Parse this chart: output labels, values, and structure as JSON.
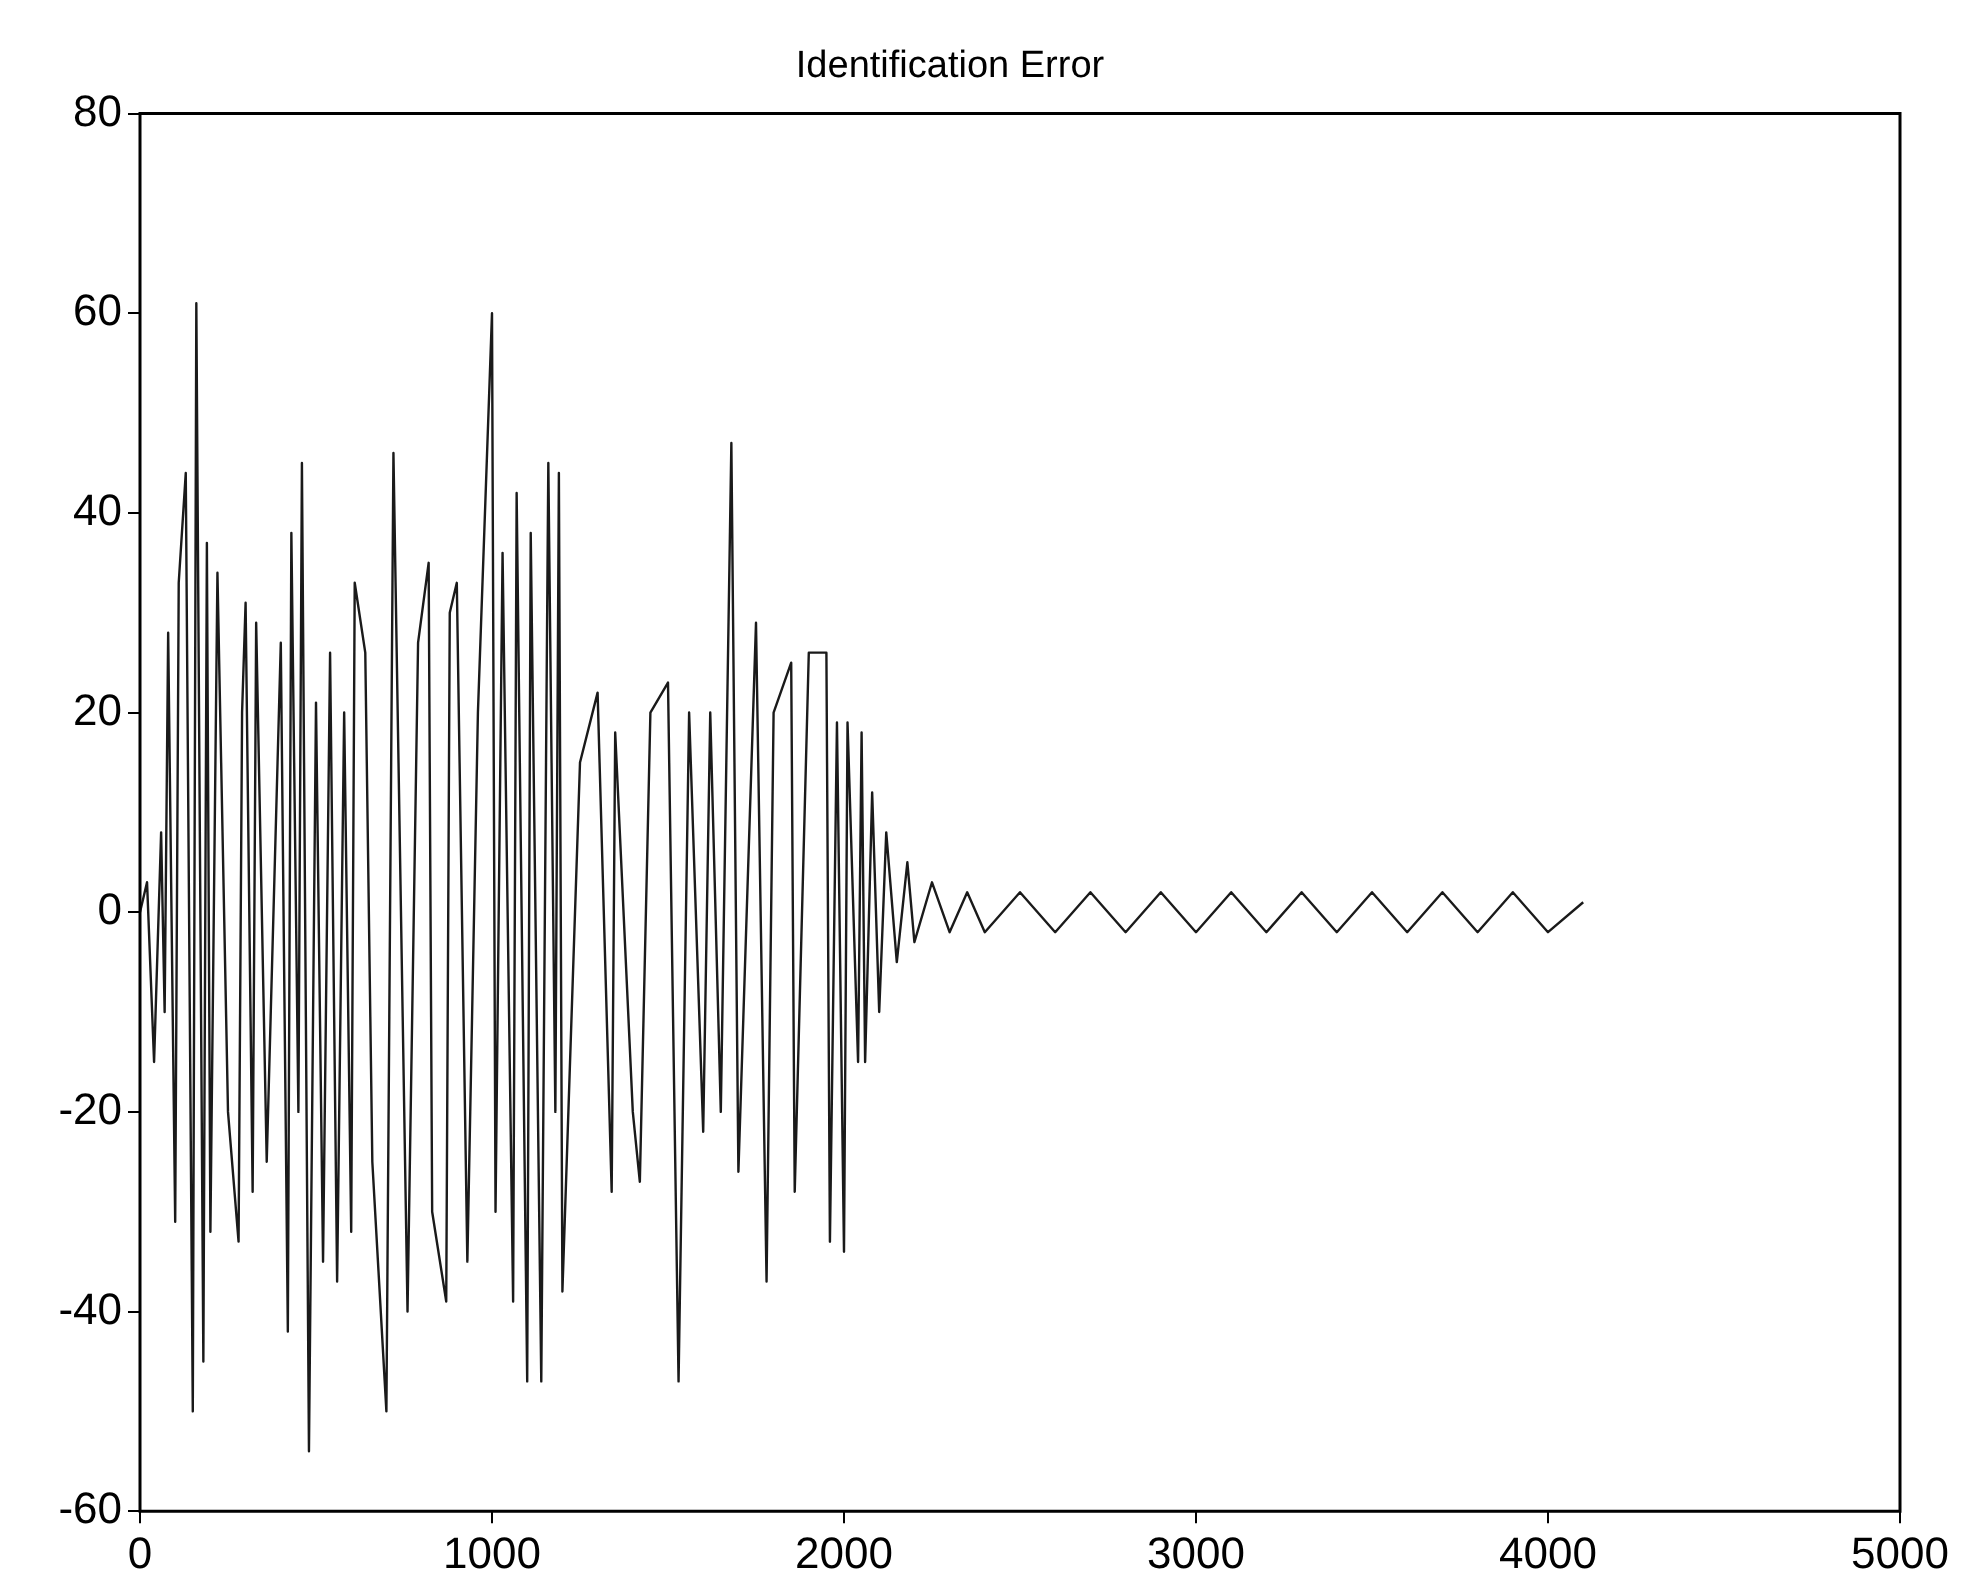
{
  "chart_data": {
    "type": "line",
    "title": "Identification Error",
    "xlim": [
      0,
      5000
    ],
    "xticks": [
      0,
      1000,
      2000,
      3000,
      4000,
      5000
    ],
    "ylim": [
      -60,
      80
    ],
    "yticks": [
      -60,
      -40,
      -20,
      0,
      20,
      40,
      60,
      80
    ],
    "grid": false,
    "legend": false,
    "marker": "none",
    "series": [
      {
        "color": "#1a1a1a",
        "x": [
          0,
          20,
          40,
          60,
          70,
          80,
          100,
          110,
          130,
          150,
          160,
          180,
          190,
          200,
          220,
          250,
          280,
          290,
          300,
          320,
          330,
          360,
          400,
          420,
          430,
          450,
          460,
          480,
          500,
          520,
          540,
          560,
          580,
          600,
          610,
          640,
          660,
          700,
          720,
          760,
          790,
          820,
          830,
          870,
          880,
          900,
          930,
          960,
          1000,
          1010,
          1030,
          1060,
          1070,
          1100,
          1110,
          1140,
          1160,
          1180,
          1190,
          1200,
          1250,
          1300,
          1340,
          1350,
          1400,
          1420,
          1450,
          1500,
          1530,
          1560,
          1600,
          1620,
          1650,
          1680,
          1700,
          1750,
          1780,
          1800,
          1850,
          1860,
          1900,
          1950,
          1960,
          1980,
          2000,
          2010,
          2040,
          2050,
          2060,
          2080,
          2100,
          2120,
          2150,
          2180,
          2200,
          2250,
          2300,
          2350,
          2400,
          2500,
          2600,
          2700,
          2800,
          2900,
          3000,
          3100,
          3200,
          3300,
          3400,
          3500,
          3600,
          3700,
          3800,
          3900,
          4000,
          4100
        ],
        "values": [
          0,
          3,
          -15,
          8,
          -10,
          28,
          -31,
          33,
          44,
          -50,
          61,
          -45,
          37,
          -32,
          34,
          -20,
          -33,
          20,
          31,
          -28,
          29,
          -25,
          27,
          -42,
          38,
          -20,
          45,
          -54,
          21,
          -35,
          26,
          -37,
          20,
          -32,
          33,
          26,
          -25,
          -50,
          46,
          -40,
          27,
          35,
          -30,
          -39,
          30,
          33,
          -35,
          20,
          60,
          -30,
          36,
          -39,
          42,
          -47,
          38,
          -47,
          45,
          -20,
          44,
          -38,
          15,
          22,
          -28,
          18,
          -20,
          -27,
          20,
          23,
          -47,
          20,
          -22,
          20,
          -20,
          47,
          -26,
          29,
          -37,
          20,
          25,
          -28,
          26,
          26,
          -33,
          19,
          -34,
          19,
          -15,
          18,
          -15,
          12,
          -10,
          8,
          -5,
          5,
          -3,
          3,
          -2,
          2,
          -2,
          2,
          -2,
          2,
          -2,
          2,
          -2,
          2,
          -2,
          2,
          -2,
          2,
          -2,
          2,
          -2,
          2,
          -2,
          1
        ]
      }
    ]
  }
}
